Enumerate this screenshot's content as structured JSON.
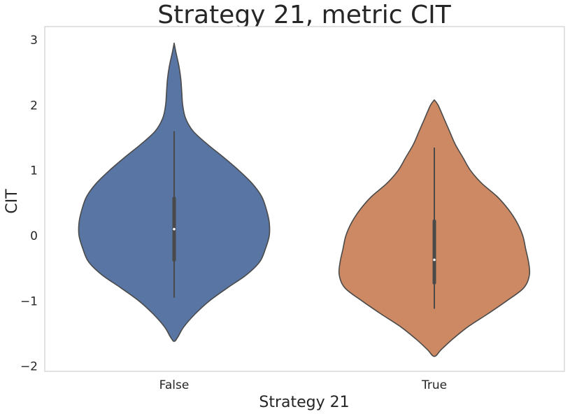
{
  "chart_data": {
    "type": "violin",
    "title": "Strategy 21, metric CIT",
    "xlabel": "Strategy 21",
    "ylabel": "CIT",
    "categories": [
      "False",
      "True"
    ],
    "ylim": [
      -2.05,
      3.2
    ],
    "yticks": [
      3,
      2,
      1,
      0,
      -1,
      -2
    ],
    "ytick_labels": [
      "3",
      "2",
      "1",
      "0",
      "−1",
      "−2"
    ],
    "grid": false,
    "colors": [
      "#5875a4",
      "#cc8963"
    ],
    "outline_color": "#4a4a4a",
    "violins": [
      {
        "category": "False",
        "min": -1.62,
        "max": 2.95,
        "whisker_low": -0.95,
        "whisker_high": 1.6,
        "q1": -0.4,
        "median": 0.1,
        "q3": 0.6,
        "density": [
          [
            2.95,
            0.0
          ],
          [
            2.8,
            0.02
          ],
          [
            2.6,
            0.05
          ],
          [
            2.4,
            0.07
          ],
          [
            2.2,
            0.08
          ],
          [
            2.0,
            0.09
          ],
          [
            1.8,
            0.12
          ],
          [
            1.6,
            0.2
          ],
          [
            1.4,
            0.35
          ],
          [
            1.2,
            0.52
          ],
          [
            1.0,
            0.68
          ],
          [
            0.8,
            0.82
          ],
          [
            0.6,
            0.92
          ],
          [
            0.4,
            0.97
          ],
          [
            0.2,
            1.0
          ],
          [
            0.0,
            1.0
          ],
          [
            -0.2,
            0.96
          ],
          [
            -0.4,
            0.9
          ],
          [
            -0.6,
            0.76
          ],
          [
            -0.8,
            0.56
          ],
          [
            -1.0,
            0.37
          ],
          [
            -1.2,
            0.22
          ],
          [
            -1.4,
            0.1
          ],
          [
            -1.55,
            0.04
          ],
          [
            -1.62,
            0.0
          ]
        ]
      },
      {
        "category": "True",
        "min": -1.85,
        "max": 2.08,
        "whisker_low": -1.12,
        "whisker_high": 1.35,
        "q1": -0.75,
        "median": -0.37,
        "q3": 0.25,
        "density": [
          [
            2.08,
            0.0
          ],
          [
            2.0,
            0.04
          ],
          [
            1.8,
            0.1
          ],
          [
            1.6,
            0.16
          ],
          [
            1.4,
            0.22
          ],
          [
            1.2,
            0.3
          ],
          [
            1.0,
            0.38
          ],
          [
            0.8,
            0.5
          ],
          [
            0.6,
            0.66
          ],
          [
            0.4,
            0.78
          ],
          [
            0.2,
            0.87
          ],
          [
            0.0,
            0.93
          ],
          [
            -0.2,
            0.96
          ],
          [
            -0.4,
            0.99
          ],
          [
            -0.6,
            1.0
          ],
          [
            -0.8,
            0.94
          ],
          [
            -1.0,
            0.76
          ],
          [
            -1.2,
            0.56
          ],
          [
            -1.4,
            0.35
          ],
          [
            -1.6,
            0.18
          ],
          [
            -1.75,
            0.07
          ],
          [
            -1.85,
            0.0
          ]
        ]
      }
    ]
  }
}
